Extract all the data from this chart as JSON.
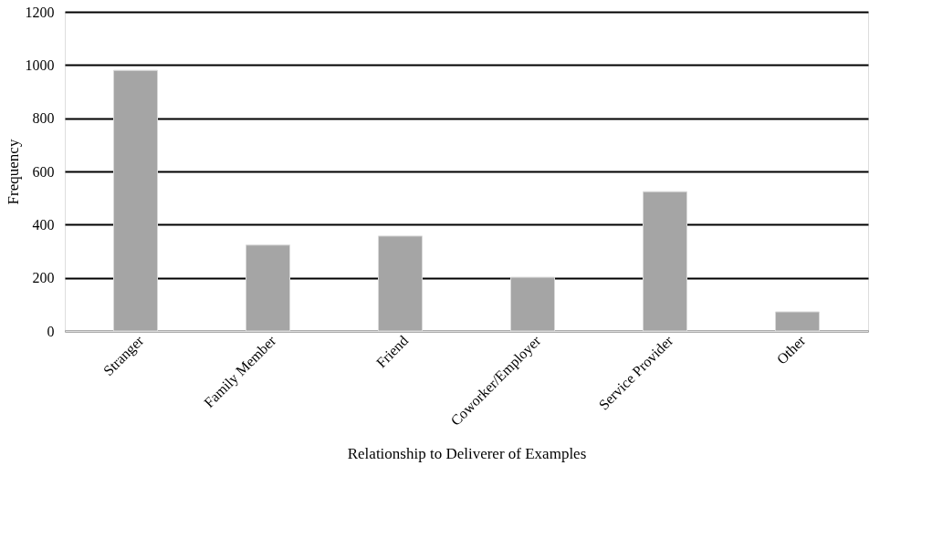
{
  "chart_data": {
    "type": "bar",
    "xlabel": "Relationship to Deliverer of Examples",
    "ylabel": "Frequency",
    "categories": [
      "Stranger",
      "Family Member",
      "Friend",
      "Coworker/Employer",
      "Service Provider",
      "Other"
    ],
    "values": [
      980,
      323,
      357,
      202,
      524,
      72
    ],
    "color": "#a5a5a5",
    "ylim": [
      0,
      1200
    ],
    "yticks": [
      0,
      200,
      400,
      600,
      800,
      1000,
      1200
    ],
    "grid": "y"
  }
}
